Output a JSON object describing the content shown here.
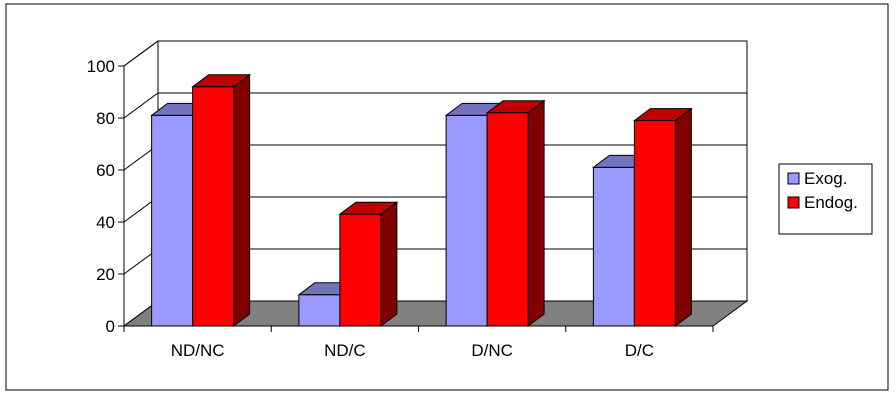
{
  "chart_data": {
    "type": "bar",
    "title": "",
    "xlabel": "",
    "ylabel": "",
    "categories": [
      "ND/NC",
      "ND/C",
      "D/NC",
      "D/C"
    ],
    "series": [
      {
        "name": "Exog.",
        "values": [
          81,
          12,
          81,
          61
        ],
        "color": "#9999ff",
        "side_color": "#4d4d99",
        "top_color": "#7373bf"
      },
      {
        "name": "Endog.",
        "values": [
          92,
          43,
          82,
          79
        ],
        "color": "#ff0000",
        "side_color": "#800000",
        "top_color": "#bf0000"
      }
    ],
    "ylim": [
      0,
      100
    ],
    "yticks": [
      "0",
      "20",
      "40",
      "60",
      "80",
      "100"
    ],
    "grid": true,
    "legend_position": "right",
    "floor_color": "#808080",
    "three_d": true
  }
}
